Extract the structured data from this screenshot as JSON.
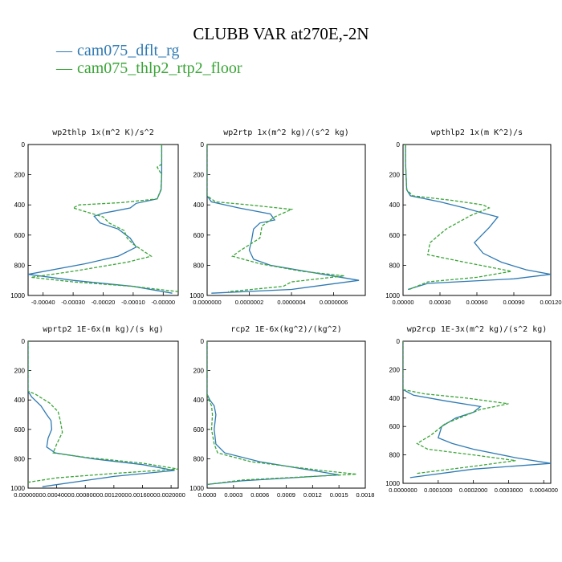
{
  "figure": {
    "title": "CLUBB VAR at270E,-2N",
    "legend": [
      {
        "label": "cam075_dflt_rg",
        "color": "#2f7ab3",
        "dash": "solid"
      },
      {
        "label": "cam075_thlp2_rtp2_floor",
        "color": "#3aa537",
        "dash": "dashed"
      }
    ]
  },
  "chart_data": [
    {
      "type": "line",
      "title": "wp2thlp  1x(m^2 K)/s^2",
      "ylim": [
        1000,
        0
      ],
      "yticks": [
        0,
        200,
        400,
        600,
        800,
        1000
      ],
      "xlim": [
        -0.00045,
        5e-05
      ],
      "xticks": [
        -0.0004,
        -0.0003,
        -0.0002,
        -0.0001,
        0.0
      ],
      "xtick_labels": [
        "-0.00040",
        "-0.00030",
        "-0.00020",
        "-0.00010",
        "-0.00000"
      ],
      "series": [
        {
          "name": "cam075_dflt_rg",
          "points": [
            [
              -5e-06,
              0
            ],
            [
              -5e-06,
              130
            ],
            [
              -5e-06,
              150
            ],
            [
              -5e-06,
              200
            ],
            [
              -7e-06,
              300
            ],
            [
              -2e-05,
              360
            ],
            [
              -9e-05,
              390
            ],
            [
              -0.00011,
              420
            ],
            [
              -0.00016,
              440
            ],
            [
              -0.0002,
              455
            ],
            [
              -0.00023,
              475
            ],
            [
              -0.00021,
              520
            ],
            [
              -0.00015,
              560
            ],
            [
              -0.00011,
              620
            ],
            [
              -9e-05,
              680
            ],
            [
              -0.00015,
              740
            ],
            [
              -0.00026,
              790
            ],
            [
              -0.00045,
              860
            ],
            [
              -0.0003,
              900
            ],
            [
              -0.0001,
              940
            ],
            [
              3e-05,
              985
            ]
          ]
        },
        {
          "name": "cam075_thlp2_rtp2_floor",
          "points": [
            [
              -5e-06,
              0
            ],
            [
              -5e-06,
              130
            ],
            [
              -2e-05,
              150
            ],
            [
              -5e-06,
              200
            ],
            [
              -8e-06,
              300
            ],
            [
              -2e-05,
              360
            ],
            [
              -0.00014,
              385
            ],
            [
              -0.00028,
              400
            ],
            [
              -0.0003,
              420
            ],
            [
              -0.00025,
              450
            ],
            [
              -0.0002,
              480
            ],
            [
              -0.00018,
              520
            ],
            [
              -0.00013,
              570
            ],
            [
              -0.00012,
              620
            ],
            [
              -0.0001,
              660
            ],
            [
              -7e-05,
              700
            ],
            [
              -4e-05,
              740
            ],
            [
              -0.00012,
              780
            ],
            [
              -0.0003,
              840
            ],
            [
              -0.00044,
              880
            ],
            [
              -0.0003,
              910
            ],
            [
              -0.0001,
              940
            ],
            [
              5e-05,
              975
            ]
          ]
        }
      ]
    },
    {
      "type": "line",
      "title": "wp2rtp  1x(m^2 kg)/(s^2 kg)",
      "ylim": [
        1000,
        0
      ],
      "yticks": [
        0,
        200,
        400,
        600,
        800,
        1000
      ],
      "xlim": [
        0.0,
        7.5e-07
      ],
      "xticks": [
        0.0,
        2e-07,
        4e-07,
        6e-07
      ],
      "xtick_labels": [
        "0.0000000",
        "0.0000002",
        "0.0000004",
        "0.0000006"
      ],
      "series": [
        {
          "name": "cam075_dflt_rg",
          "points": [
            [
              0.0,
              0
            ],
            [
              0.0,
              340
            ],
            [
              2e-08,
              380
            ],
            [
              1.5e-07,
              420
            ],
            [
              3e-07,
              460
            ],
            [
              3.2e-07,
              500
            ],
            [
              2.5e-07,
              520
            ],
            [
              2.2e-07,
              560
            ],
            [
              2.1e-07,
              640
            ],
            [
              2e-07,
              700
            ],
            [
              2.2e-07,
              760
            ],
            [
              3e-07,
              800
            ],
            [
              5.5e-07,
              860
            ],
            [
              7.2e-07,
              900
            ],
            [
              4e-07,
              960
            ],
            [
              2e-08,
              985
            ]
          ]
        },
        {
          "name": "cam075_thlp2_rtp2_floor",
          "points": [
            [
              0.0,
              0
            ],
            [
              0.0,
              340
            ],
            [
              4e-08,
              380
            ],
            [
              2e-07,
              400
            ],
            [
              4e-07,
              430
            ],
            [
              3.2e-07,
              480
            ],
            [
              2.6e-07,
              540
            ],
            [
              2.5e-07,
              620
            ],
            [
              1.6e-07,
              700
            ],
            [
              1.2e-07,
              740
            ],
            [
              2.5e-07,
              790
            ],
            [
              4.5e-07,
              840
            ],
            [
              6.5e-07,
              870
            ],
            [
              4e-07,
              910
            ],
            [
              3.6e-07,
              940
            ],
            [
              1e-07,
              975
            ]
          ]
        }
      ]
    },
    {
      "type": "line",
      "title": "wpthlp2  1x(m K^2)/s",
      "ylim": [
        1000,
        0
      ],
      "yticks": [
        0,
        200,
        400,
        600,
        800,
        1000
      ],
      "xlim": [
        0.0,
        0.0012
      ],
      "xticks": [
        0.0,
        0.0003,
        0.0006,
        0.0009,
        0.0012
      ],
      "xtick_labels": [
        "0.00000",
        "0.00030",
        "0.00060",
        "0.00090",
        "0.00120"
      ],
      "series": [
        {
          "name": "cam075_dflt_rg",
          "points": [
            [
              2e-05,
              0
            ],
            [
              2e-05,
              120
            ],
            [
              3e-05,
              300
            ],
            [
              6e-05,
              340
            ],
            [
              0.0003,
              380
            ],
            [
              0.0005,
              420
            ],
            [
              0.00063,
              450
            ],
            [
              0.00077,
              480
            ],
            [
              0.0007,
              550
            ],
            [
              0.00058,
              650
            ],
            [
              0.00065,
              720
            ],
            [
              0.0008,
              780
            ],
            [
              0.001,
              830
            ],
            [
              0.0012,
              860
            ],
            [
              0.0009,
              890
            ],
            [
              0.0002,
              920
            ],
            [
              4e-05,
              960
            ]
          ]
        },
        {
          "name": "cam075_thlp2_rtp2_floor",
          "points": [
            [
              2e-05,
              0
            ],
            [
              2e-05,
              120
            ],
            [
              3e-05,
              300
            ],
            [
              8e-05,
              340
            ],
            [
              0.0004,
              370
            ],
            [
              0.00065,
              400
            ],
            [
              0.0007,
              420
            ],
            [
              0.00055,
              470
            ],
            [
              0.00035,
              560
            ],
            [
              0.00022,
              650
            ],
            [
              0.0002,
              730
            ],
            [
              0.0005,
              780
            ],
            [
              0.00088,
              840
            ],
            [
              0.0006,
              880
            ],
            [
              0.0002,
              910
            ],
            [
              5e-05,
              960
            ]
          ]
        }
      ]
    },
    {
      "type": "line",
      "title": "wprtp2  1E-6x(m kg)/(s kg)",
      "ylim": [
        1000,
        0
      ],
      "yticks": [
        0,
        200,
        400,
        600,
        800,
        1000
      ],
      "xlim": [
        0.0,
        0.0021
      ],
      "xticks": [
        0.0,
        0.0004,
        0.0008,
        0.0012,
        0.0016,
        0.002
      ],
      "xtick_labels": [
        "0.0000000",
        "0.0004000",
        "0.0008000",
        "0.0012000",
        "0.0016000",
        "0.0020000"
      ],
      "series": [
        {
          "name": "cam075_dflt_rg",
          "points": [
            [
              0.0,
              0
            ],
            [
              0.0,
              340
            ],
            [
              5e-05,
              380
            ],
            [
              0.00018,
              440
            ],
            [
              0.00026,
              500
            ],
            [
              0.00032,
              540
            ],
            [
              0.00033,
              600
            ],
            [
              0.00028,
              660
            ],
            [
              0.00026,
              720
            ],
            [
              0.00038,
              760
            ],
            [
              0.0009,
              800
            ],
            [
              0.0016,
              840
            ],
            [
              0.00205,
              880
            ],
            [
              0.0012,
              920
            ],
            [
              0.0002,
              990
            ]
          ]
        },
        {
          "name": "cam075_thlp2_rtp2_floor",
          "points": [
            [
              0.0,
              0
            ],
            [
              0.0,
              340
            ],
            [
              0.0001,
              360
            ],
            [
              0.0003,
              420
            ],
            [
              0.00042,
              480
            ],
            [
              0.00045,
              540
            ],
            [
              0.00048,
              620
            ],
            [
              0.0004,
              700
            ],
            [
              0.00035,
              760
            ],
            [
              0.0008,
              790
            ],
            [
              0.0016,
              830
            ],
            [
              0.0021,
              870
            ],
            [
              0.0012,
              900
            ],
            [
              0.0004,
              930
            ],
            [
              0.0,
              960
            ]
          ]
        }
      ]
    },
    {
      "type": "line",
      "title": "rcp2  1E-6x(kg^2)/(kg^2)",
      "ylim": [
        1000,
        0
      ],
      "yticks": [
        0,
        200,
        400,
        600,
        800,
        1000
      ],
      "xlim": [
        0.0,
        0.0018
      ],
      "xticks": [
        0.0,
        0.0003,
        0.0006,
        0.0009,
        0.0012,
        0.0015,
        0.0018
      ],
      "xtick_labels": [
        "0.0000",
        "0.0003",
        "0.0006",
        "0.0009",
        "0.0012",
        "0.0015",
        "0.0018"
      ],
      "series": [
        {
          "name": "cam075_dflt_rg",
          "points": [
            [
              0.0,
              0
            ],
            [
              0.0,
              360
            ],
            [
              3e-05,
              400
            ],
            [
              8e-05,
              440
            ],
            [
              0.0001,
              500
            ],
            [
              8e-05,
              600
            ],
            [
              0.0001,
              700
            ],
            [
              0.0002,
              760
            ],
            [
              0.0006,
              820
            ],
            [
              0.0012,
              880
            ],
            [
              0.0015,
              910
            ],
            [
              0.0004,
              950
            ],
            [
              0.0,
              975
            ]
          ]
        },
        {
          "name": "cam075_thlp2_rtp2_floor",
          "points": [
            [
              0.0,
              0
            ],
            [
              0.0,
              360
            ],
            [
              2e-05,
              400
            ],
            [
              5e-05,
              440
            ],
            [
              6e-05,
              500
            ],
            [
              5e-05,
              600
            ],
            [
              8e-05,
              700
            ],
            [
              0.00012,
              760
            ],
            [
              0.0005,
              820
            ],
            [
              0.0013,
              880
            ],
            [
              0.0017,
              905
            ],
            [
              0.0004,
              945
            ],
            [
              0.0,
              975
            ]
          ]
        }
      ]
    },
    {
      "type": "line",
      "title": "wp2rcp  1E-3x(m^2 kg)/(s^2 kg)",
      "ylim": [
        1000,
        0
      ],
      "yticks": [
        0,
        200,
        400,
        600,
        800,
        1000
      ],
      "xlim": [
        0.0,
        0.00042
      ],
      "xticks": [
        0.0,
        0.0001,
        0.0002,
        0.0003,
        0.0004
      ],
      "xtick_labels": [
        "0.0000000",
        "0.0001000",
        "0.0002000",
        "0.0003000",
        "0.0004000"
      ],
      "series": [
        {
          "name": "cam075_dflt_rg",
          "points": [
            [
              0.0,
              0
            ],
            [
              0.0,
              340
            ],
            [
              3e-05,
              380
            ],
            [
              0.00012,
              420
            ],
            [
              0.00022,
              460
            ],
            [
              0.0002,
              500
            ],
            [
              0.00015,
              540
            ],
            [
              0.00011,
              600
            ],
            [
              0.0001,
              680
            ],
            [
              0.00014,
              720
            ],
            [
              0.0002,
              760
            ],
            [
              0.00032,
              820
            ],
            [
              0.00042,
              860
            ],
            [
              0.0002,
              900
            ],
            [
              2e-05,
              960
            ]
          ]
        },
        {
          "name": "cam075_thlp2_rtp2_floor",
          "points": [
            [
              0.0,
              0
            ],
            [
              0.0,
              340
            ],
            [
              6e-05,
              370
            ],
            [
              0.00018,
              400
            ],
            [
              0.0003,
              440
            ],
            [
              0.00022,
              480
            ],
            [
              0.00018,
              520
            ],
            [
              0.00012,
              580
            ],
            [
              8e-05,
              660
            ],
            [
              4e-05,
              720
            ],
            [
              7e-05,
              760
            ],
            [
              0.0002,
              800
            ],
            [
              0.00032,
              840
            ],
            [
              0.0002,
              880
            ],
            [
              4e-05,
              930
            ]
          ]
        }
      ]
    }
  ]
}
